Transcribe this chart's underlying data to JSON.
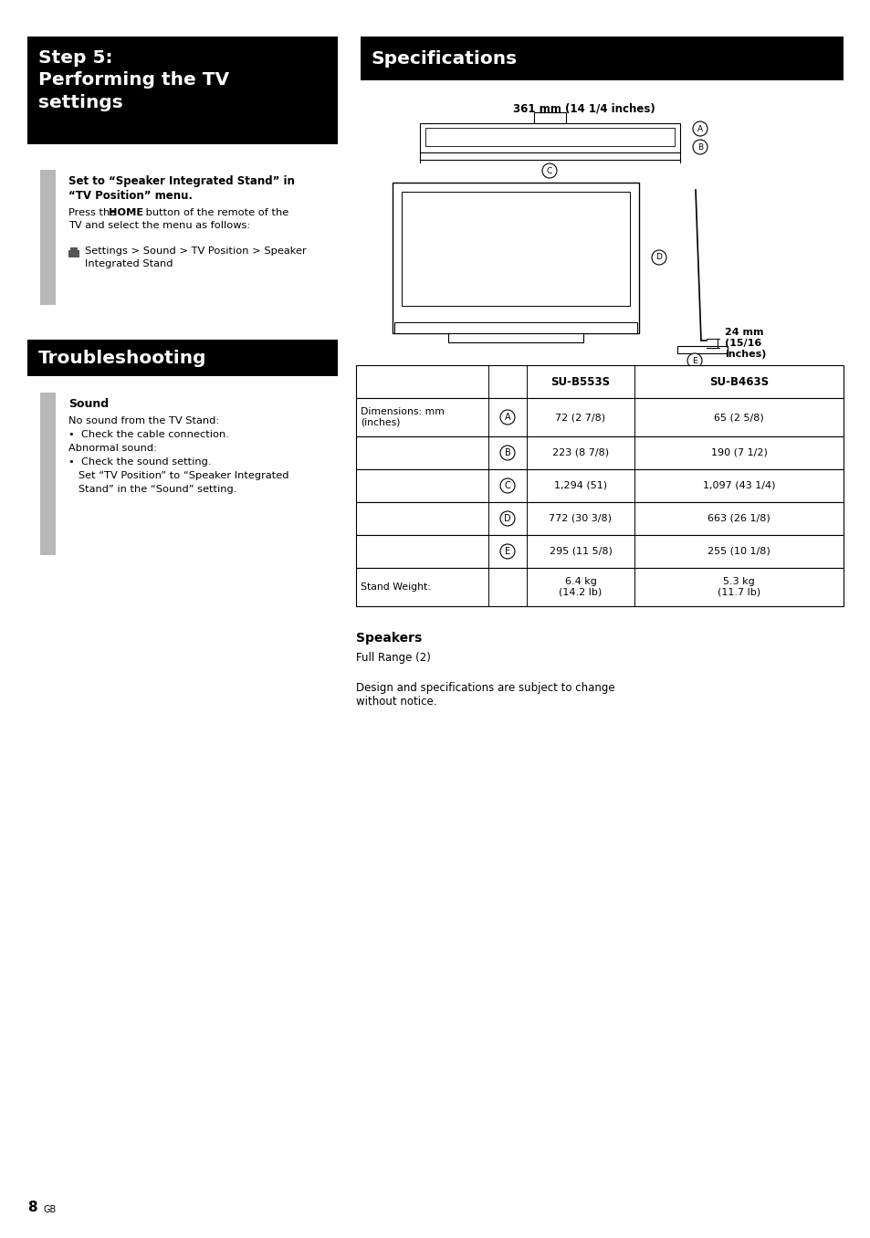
{
  "page_bg": "#ffffff",
  "step5_title": "Step 5:\nPerforming the TV\nsettings",
  "specs_title": "Specifications",
  "troubleshoot_title": "Troubleshooting",
  "step5_body_title_bold": "Set to “Speaker Integrated Stand” in\n“TV Position” menu.",
  "step5_body_text1": "Press the ",
  "step5_body_text1_bold": "HOME",
  "step5_body_text1_rest": " button of the remote of the\nTV and select the menu as follows:",
  "step5_body_text2": " Settings > Sound > TV Position > Speaker\nIntegrated Stand",
  "trouble_sound_title": "Sound",
  "trouble_line1": "No sound from the TV Stand:",
  "trouble_line2": "•  Check the cable connection.",
  "trouble_line3": "Abnormal sound:",
  "trouble_line4": "•  Check the sound setting.",
  "trouble_line5": "   Set “TV Position” to “Speaker Integrated",
  "trouble_line6": "   Stand” in the “Sound” setting.",
  "dim_label": "361 mm (14 1/4 inches)",
  "dim24_label": "24 mm\n(15/16\ninches)",
  "table_col_headers": [
    "SU-B553S",
    "SU-B463S"
  ],
  "table_rows": [
    [
      "Dimensions: mm\n(inches)",
      "A",
      "72 (2 7/8)",
      "65 (2 5/8)"
    ],
    [
      "",
      "B",
      "223 (8 7/8)",
      "190 (7 1/2)"
    ],
    [
      "",
      "C",
      "1,294 (51)",
      "1,097 (43 1/4)"
    ],
    [
      "",
      "D",
      "772 (30 3/8)",
      "663 (26 1/8)"
    ],
    [
      "",
      "E",
      "295 (11 5/8)",
      "255 (10 1/8)"
    ],
    [
      "Stand Weight:",
      "",
      "6.4 kg\n(14.2 lb)",
      "5.3 kg\n(11.7 lb)"
    ]
  ],
  "speakers_title": "Speakers",
  "speakers_text": "Full Range (2)",
  "design_note": "Design and specifications are subject to change\nwithout notice.",
  "page_num": "8",
  "page_num_suffix": "GB"
}
